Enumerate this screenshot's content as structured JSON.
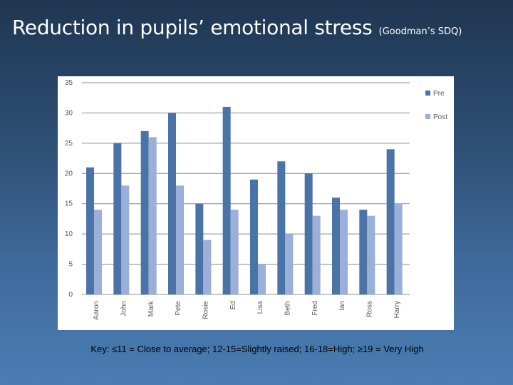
{
  "slide": {
    "title": "Reduction in pupils’ emotional stress",
    "subtitle": "(Goodman’s SDQ)",
    "key": "Key: ≤11 = Close to average; 12-15=Slightly raised; 16-18=High; ≥19 = Very High"
  },
  "colors": {
    "background_top": "#1f3651",
    "background_bottom": "#4a7db3",
    "pre": "#4a73a8",
    "post": "#9bb0d8"
  },
  "chart_data": {
    "type": "bar",
    "categories": [
      "Aaron",
      "John",
      "Mark",
      "Pete",
      "Rosie",
      "Ed",
      "Lisa",
      "Beth",
      "Fred",
      "Ian",
      "Ross",
      "Harry"
    ],
    "series": [
      {
        "name": "Pre",
        "values": [
          21,
          25,
          27,
          30,
          15,
          31,
          19,
          22,
          20,
          16,
          14,
          24
        ]
      },
      {
        "name": "Post",
        "values": [
          14,
          18,
          26,
          18,
          9,
          14,
          5,
          10,
          13,
          14,
          13,
          15
        ]
      }
    ],
    "yticks": [
      "0",
      "5",
      "10",
      "15",
      "20",
      "25",
      "30",
      "35"
    ],
    "ylim": [
      0,
      35
    ],
    "grid": true,
    "legend_position": "top-right"
  }
}
